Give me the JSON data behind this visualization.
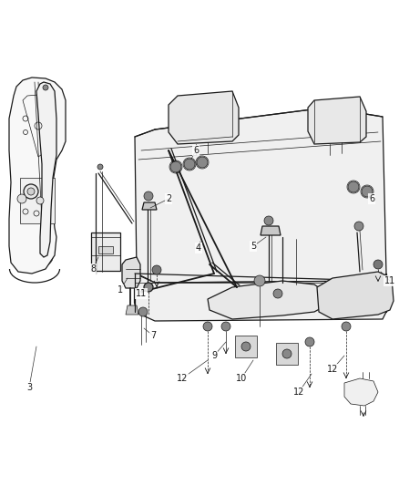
{
  "background_color": "#ffffff",
  "line_color": "#1a1a1a",
  "fig_width": 4.38,
  "fig_height": 5.33,
  "dpi": 100,
  "label_fontsize": 7.0,
  "lw_thin": 0.5,
  "lw_med": 0.9,
  "lw_thick": 1.3
}
